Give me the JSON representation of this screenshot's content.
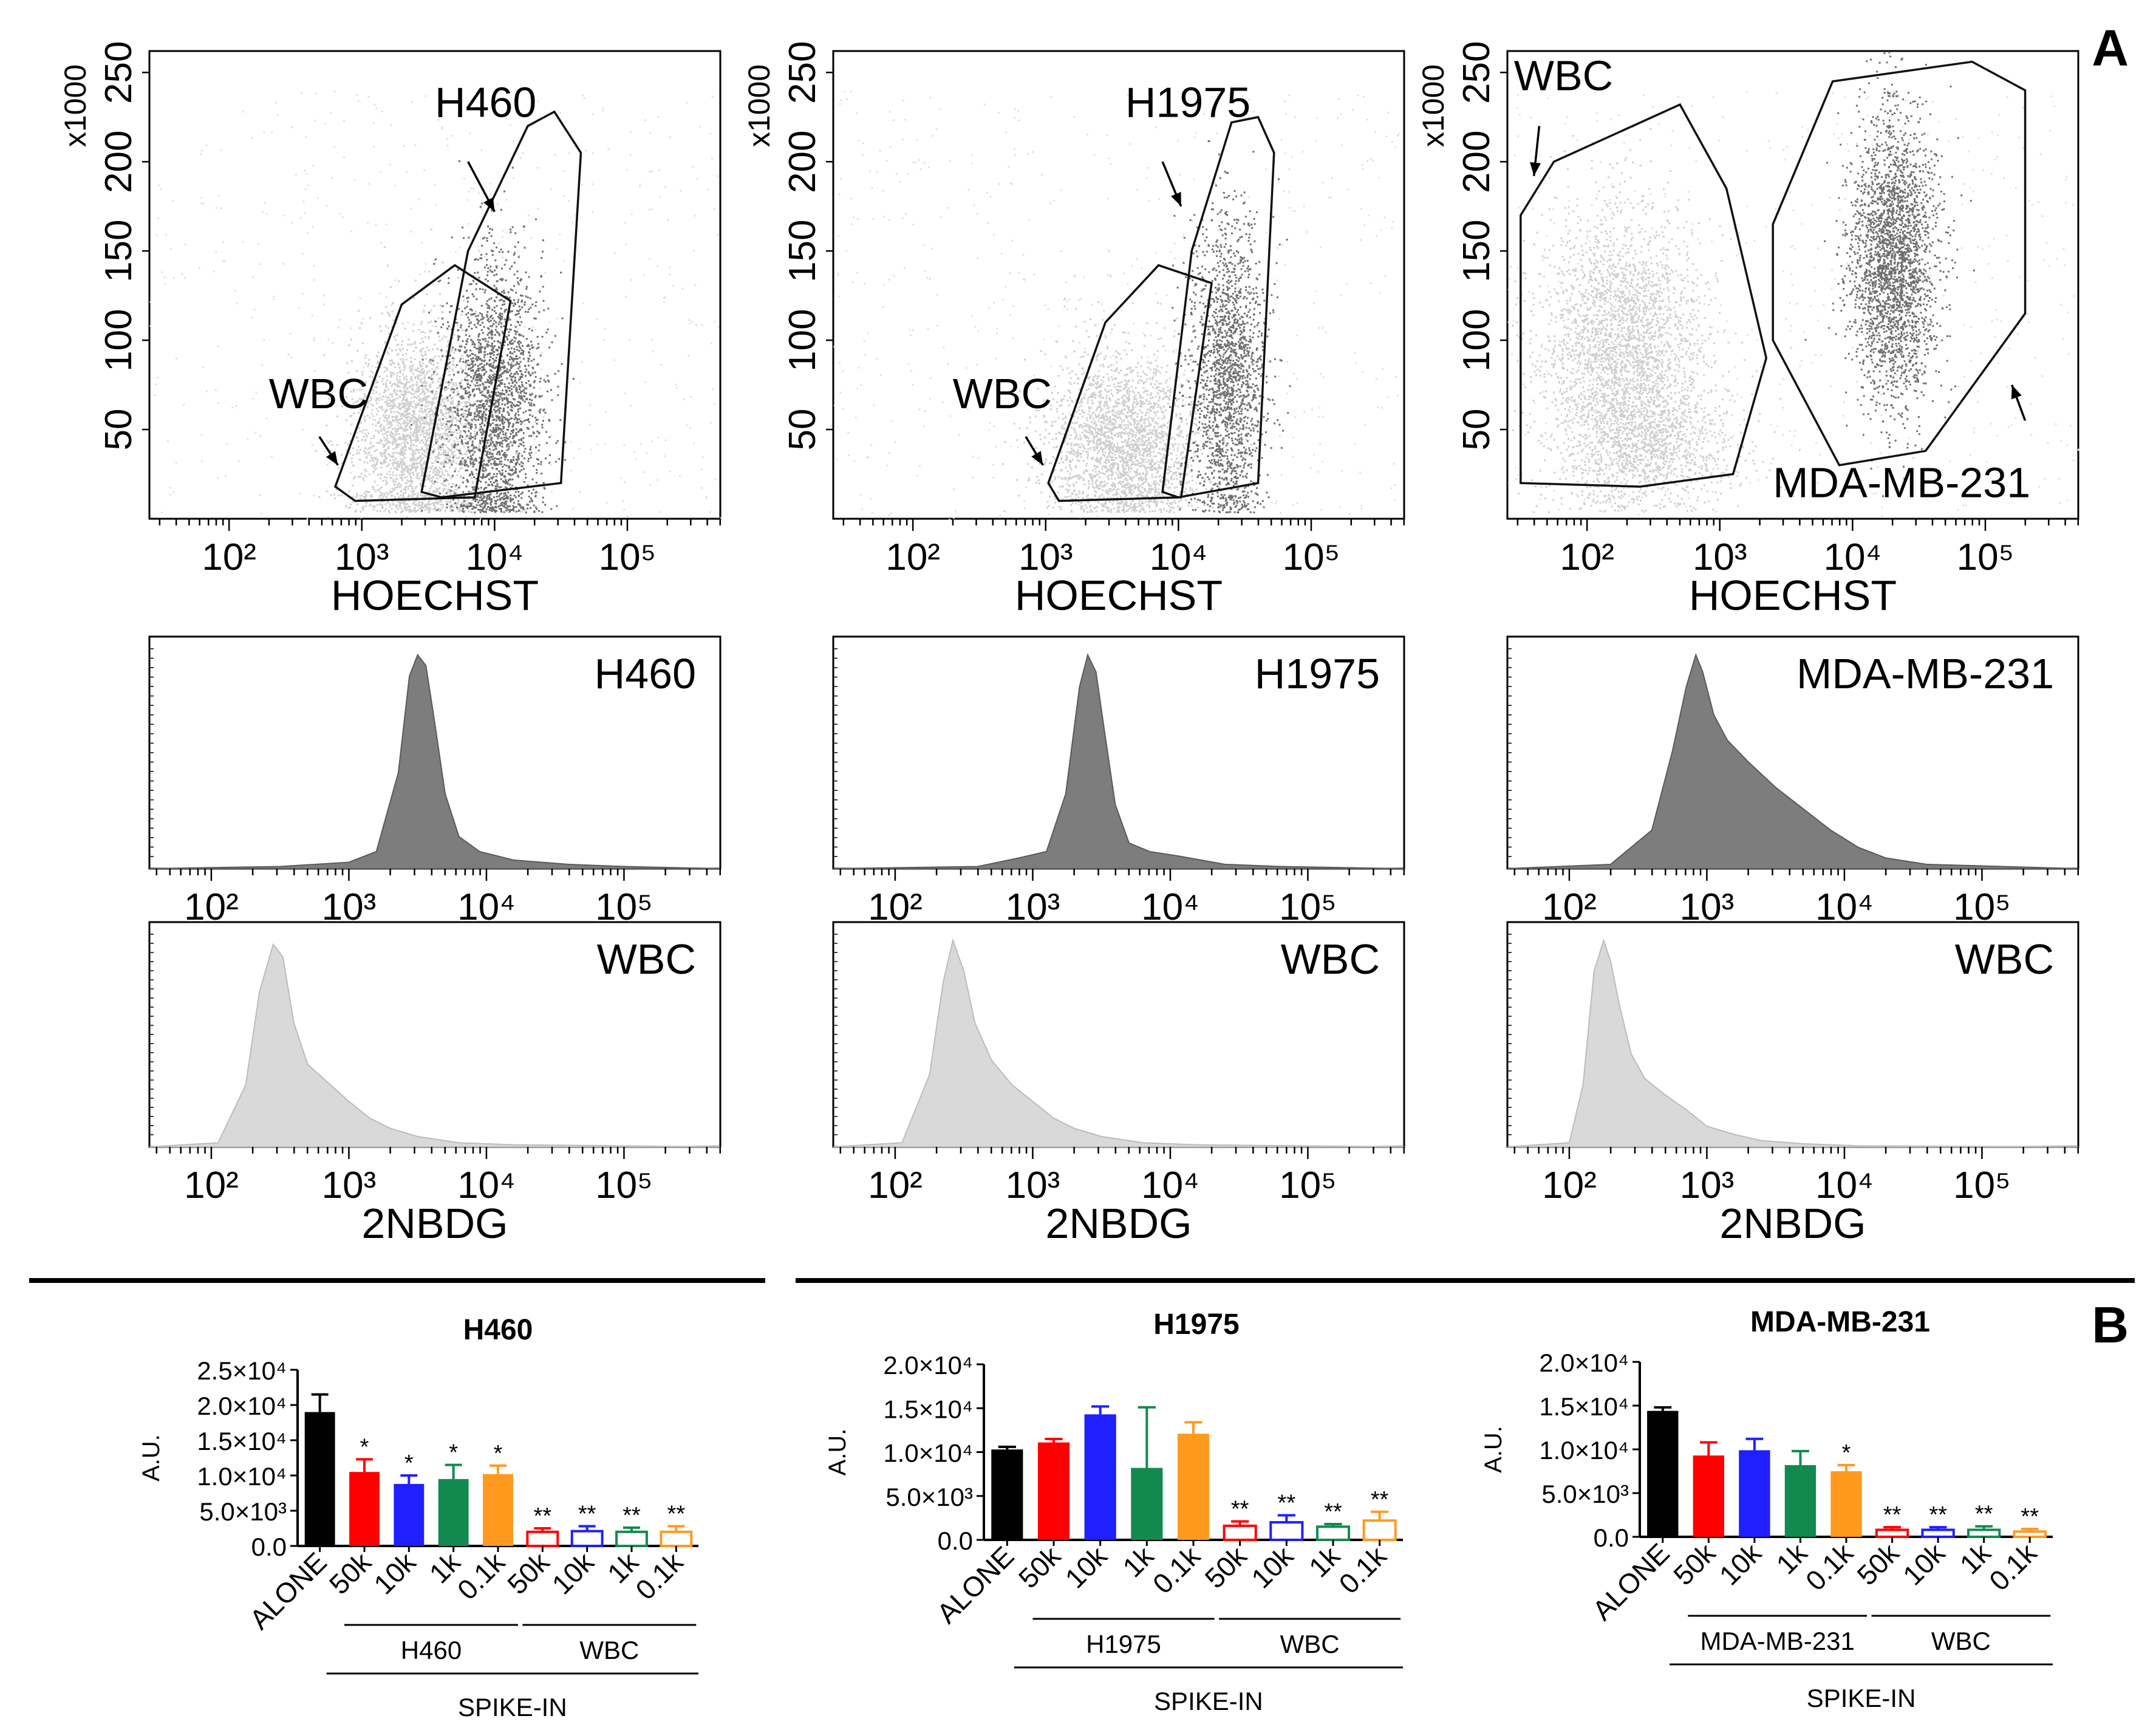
{
  "panel_labels": {
    "a": "A",
    "b": "B"
  },
  "colors": {
    "tumor": "#6f6f6f",
    "wbc": "#cfcfcf",
    "black": "#000000",
    "red": "#ff0000",
    "blue": "#1f1fff",
    "green": "#128a4f",
    "orange": "#ff9a1f"
  },
  "chart_data": [
    {
      "type": "scatter",
      "id": "dot-h460",
      "xlabel": "HOECHST",
      "y_multiplier": "x1000",
      "xticks": [
        "10²",
        "10³",
        "10⁴",
        "10⁵"
      ],
      "xtick_values": [
        2,
        3,
        4,
        5
      ],
      "yticks": [
        "50",
        "100",
        "150",
        "200",
        "250"
      ],
      "ytick_values": [
        50,
        100,
        150,
        200,
        250
      ],
      "xlim": [
        1.4,
        5.7
      ],
      "ylim": [
        0,
        262
      ],
      "annotations": [
        {
          "text": "H460",
          "x": 3.55,
          "y": 225
        },
        {
          "text": "WBC",
          "x": 2.3,
          "y": 62
        }
      ],
      "arrows": [
        {
          "from": [
            3.8,
            200
          ],
          "to": [
            4.0,
            172
          ]
        },
        {
          "from": [
            2.68,
            46
          ],
          "to": [
            2.82,
            30
          ]
        }
      ],
      "gates": [
        {
          "name": "wbc-gate",
          "points": [
            [
              2.8,
              18
            ],
            [
              3.3,
              120
            ],
            [
              3.7,
              142
            ],
            [
              4.12,
              122
            ],
            [
              3.85,
              12
            ],
            [
              2.95,
              10
            ]
          ]
        },
        {
          "name": "tumor-gate",
          "points": [
            [
              3.45,
              15
            ],
            [
              3.8,
              150
            ],
            [
              4.25,
              220
            ],
            [
              4.45,
              228
            ],
            [
              4.65,
              205
            ],
            [
              4.5,
              20
            ],
            [
              3.6,
              12
            ]
          ]
        }
      ],
      "clusters": [
        {
          "kind": "wbc",
          "cx": 3.4,
          "cy": 48,
          "sx": 0.24,
          "sy": 30,
          "n": 2600
        },
        {
          "kind": "tumor",
          "cx": 4.0,
          "cy": 65,
          "sx": 0.18,
          "sy": 40,
          "n": 2200
        }
      ]
    },
    {
      "type": "scatter",
      "id": "dot-h1975",
      "xlabel": "HOECHST",
      "y_multiplier": "x1000",
      "xticks": [
        "10²",
        "10³",
        "10⁴",
        "10⁵"
      ],
      "xtick_values": [
        2,
        3,
        4,
        5
      ],
      "yticks": [
        "50",
        "100",
        "150",
        "200",
        "250"
      ],
      "ytick_values": [
        50,
        100,
        150,
        200,
        250
      ],
      "xlim": [
        1.4,
        5.7
      ],
      "ylim": [
        0,
        262
      ],
      "annotations": [
        {
          "text": "H1975",
          "x": 3.6,
          "y": 225
        },
        {
          "text": "WBC",
          "x": 2.3,
          "y": 62
        }
      ],
      "arrows": [
        {
          "from": [
            3.88,
            200
          ],
          "to": [
            4.02,
            175
          ]
        },
        {
          "from": [
            2.85,
            46
          ],
          "to": [
            2.98,
            30
          ]
        }
      ],
      "gates": [
        {
          "name": "wbc-gate",
          "points": [
            [
              3.02,
              20
            ],
            [
              3.45,
              110
            ],
            [
              3.85,
              142
            ],
            [
              4.25,
              132
            ],
            [
              4.02,
              12
            ],
            [
              3.1,
              10
            ]
          ]
        },
        {
          "name": "tumor-gate",
          "points": [
            [
              3.88,
              15
            ],
            [
              4.1,
              150
            ],
            [
              4.4,
              222
            ],
            [
              4.6,
              225
            ],
            [
              4.72,
              205
            ],
            [
              4.6,
              20
            ],
            [
              4.0,
              12
            ]
          ]
        }
      ],
      "clusters": [
        {
          "kind": "wbc",
          "cx": 3.6,
          "cy": 42,
          "sx": 0.28,
          "sy": 25,
          "n": 2500
        },
        {
          "kind": "tumor",
          "cx": 4.36,
          "cy": 80,
          "sx": 0.14,
          "sy": 45,
          "n": 1800
        }
      ]
    },
    {
      "type": "scatter",
      "id": "dot-mda",
      "xlabel": "HOECHST",
      "y_multiplier": "x1000",
      "xticks": [
        "10²",
        "10³",
        "10⁴",
        "10⁵"
      ],
      "xtick_values": [
        2,
        3,
        4,
        5
      ],
      "yticks": [
        "50",
        "100",
        "150",
        "200",
        "250"
      ],
      "ytick_values": [
        50,
        100,
        150,
        200,
        250
      ],
      "xlim": [
        1.4,
        5.7
      ],
      "ylim": [
        0,
        262
      ],
      "annotations": [
        {
          "text": "WBC",
          "x": 1.45,
          "y": 240
        },
        {
          "text": "MDA-MB-231",
          "x": 3.4,
          "y": 12
        }
      ],
      "arrows": [
        {
          "from": [
            1.64,
            220
          ],
          "to": [
            1.6,
            192
          ]
        },
        {
          "from": [
            5.3,
            55
          ],
          "to": [
            5.2,
            75
          ]
        }
      ],
      "gates": [
        {
          "name": "wbc-gate",
          "points": [
            [
              1.5,
              20
            ],
            [
              1.5,
              170
            ],
            [
              1.75,
              200
            ],
            [
              2.7,
              232
            ],
            [
              3.05,
              185
            ],
            [
              3.35,
              90
            ],
            [
              3.1,
              25
            ],
            [
              2.4,
              18
            ]
          ]
        },
        {
          "name": "tumor-gate",
          "points": [
            [
              3.4,
              165
            ],
            [
              3.85,
              245
            ],
            [
              4.9,
              256
            ],
            [
              5.3,
              240
            ],
            [
              5.3,
              115
            ],
            [
              4.55,
              38
            ],
            [
              3.9,
              30
            ],
            [
              3.4,
              100
            ]
          ]
        }
      ],
      "clusters": [
        {
          "kind": "wbc",
          "cx": 2.25,
          "cy": 95,
          "sx": 0.32,
          "sy": 38,
          "n": 3000
        },
        {
          "kind": "wbc",
          "cx": 2.5,
          "cy": 40,
          "sx": 0.35,
          "sy": 15,
          "n": 900
        },
        {
          "kind": "tumor",
          "cx": 4.3,
          "cy": 145,
          "sx": 0.16,
          "sy": 40,
          "n": 2600
        }
      ]
    },
    {
      "type": "area",
      "id": "hist-h460-tumor",
      "label": "H460",
      "xticks": [
        "10²",
        "10³",
        "10⁴",
        "10⁵"
      ],
      "xtick_values": [
        2,
        3,
        4,
        5
      ],
      "xlim": [
        1.55,
        5.7
      ],
      "show_xlabel": false,
      "fill": "tumor",
      "x": [
        1.55,
        2.5,
        3.0,
        3.2,
        3.36,
        3.44,
        3.5,
        3.56,
        3.62,
        3.7,
        3.8,
        3.95,
        4.2,
        4.6,
        5.0,
        5.7
      ],
      "y": [
        0.0,
        0.01,
        0.03,
        0.08,
        0.45,
        0.9,
        1.0,
        0.95,
        0.7,
        0.35,
        0.15,
        0.08,
        0.04,
        0.02,
        0.01,
        0.0
      ]
    },
    {
      "type": "area",
      "id": "hist-h460-wbc",
      "label": "WBC",
      "xticks": [
        "10²",
        "10³",
        "10⁴",
        "10⁵"
      ],
      "xtick_values": [
        2,
        3,
        4,
        5
      ],
      "xlim": [
        1.55,
        5.7
      ],
      "xlabel": "2NBDG",
      "show_xlabel": true,
      "fill": "wbc",
      "x": [
        1.55,
        2.05,
        2.25,
        2.35,
        2.45,
        2.52,
        2.6,
        2.7,
        2.8,
        2.9,
        3.0,
        3.15,
        3.3,
        3.5,
        3.8,
        4.2,
        5.7
      ],
      "y": [
        0.0,
        0.02,
        0.3,
        0.75,
        0.98,
        0.92,
        0.6,
        0.4,
        0.34,
        0.28,
        0.22,
        0.14,
        0.09,
        0.05,
        0.02,
        0.01,
        0.0
      ]
    },
    {
      "type": "area",
      "id": "hist-h1975-tumor",
      "label": "H1975",
      "xticks": [
        "10²",
        "10³",
        "10⁴",
        "10⁵"
      ],
      "xtick_values": [
        2,
        3,
        4,
        5
      ],
      "xlim": [
        1.55,
        5.7
      ],
      "show_xlabel": false,
      "fill": "tumor",
      "x": [
        1.55,
        2.6,
        2.9,
        3.1,
        3.24,
        3.34,
        3.4,
        3.46,
        3.52,
        3.6,
        3.7,
        3.85,
        4.05,
        4.4,
        4.8,
        5.7
      ],
      "y": [
        0.0,
        0.01,
        0.05,
        0.08,
        0.35,
        0.85,
        1.0,
        0.92,
        0.65,
        0.3,
        0.12,
        0.08,
        0.06,
        0.02,
        0.01,
        0.0
      ]
    },
    {
      "type": "area",
      "id": "hist-h1975-wbc",
      "label": "WBC",
      "xticks": [
        "10²",
        "10³",
        "10⁴",
        "10⁵"
      ],
      "xtick_values": [
        2,
        3,
        4,
        5
      ],
      "xlim": [
        1.55,
        5.7
      ],
      "xlabel": "2NBDG",
      "show_xlabel": true,
      "fill": "wbc",
      "x": [
        1.55,
        2.05,
        2.25,
        2.35,
        2.42,
        2.5,
        2.58,
        2.7,
        2.85,
        3.0,
        3.15,
        3.3,
        3.5,
        3.8,
        4.2,
        5.7
      ],
      "y": [
        0.0,
        0.02,
        0.35,
        0.8,
        1.0,
        0.85,
        0.6,
        0.42,
        0.3,
        0.22,
        0.14,
        0.09,
        0.05,
        0.02,
        0.01,
        0.0
      ]
    },
    {
      "type": "area",
      "id": "hist-mda-tumor",
      "label": "MDA-MB-231",
      "xticks": [
        "10²",
        "10³",
        "10⁴",
        "10⁵"
      ],
      "xtick_values": [
        2,
        3,
        4,
        5
      ],
      "xlim": [
        1.55,
        5.7
      ],
      "show_xlabel": false,
      "fill": "tumor",
      "x": [
        1.55,
        2.3,
        2.6,
        2.75,
        2.85,
        2.92,
        2.97,
        3.05,
        3.15,
        3.3,
        3.5,
        3.7,
        3.9,
        4.1,
        4.3,
        4.6,
        5.7
      ],
      "y": [
        0.0,
        0.02,
        0.18,
        0.55,
        0.85,
        1.0,
        0.92,
        0.72,
        0.6,
        0.5,
        0.38,
        0.28,
        0.18,
        0.1,
        0.05,
        0.02,
        0.0
      ]
    },
    {
      "type": "area",
      "id": "hist-mda-wbc",
      "label": "WBC",
      "xticks": [
        "10²",
        "10³",
        "10⁴",
        "10⁵"
      ],
      "xtick_values": [
        2,
        3,
        4,
        5
      ],
      "xlim": [
        1.55,
        5.7
      ],
      "xlabel": "2NBDG",
      "show_xlabel": true,
      "fill": "wbc",
      "x": [
        1.55,
        2.0,
        2.1,
        2.18,
        2.25,
        2.3,
        2.36,
        2.45,
        2.55,
        2.7,
        2.85,
        3.0,
        3.2,
        3.4,
        3.7,
        4.1,
        5.7
      ],
      "y": [
        0.0,
        0.02,
        0.3,
        0.85,
        1.0,
        0.9,
        0.7,
        0.45,
        0.33,
        0.25,
        0.18,
        0.1,
        0.06,
        0.03,
        0.015,
        0.005,
        0.0
      ]
    },
    {
      "type": "bar",
      "id": "bar-h460",
      "title": "H460",
      "ylabel": "A.U.",
      "ylim": [
        0,
        25000
      ],
      "yticks": [
        0,
        5000,
        10000,
        15000,
        20000,
        25000
      ],
      "ytick_labels": [
        "0.0",
        "5.0×10³",
        "1.0×10⁴",
        "1.5×10⁴",
        "2.0×10⁴",
        "2.5×10⁴"
      ],
      "categories": [
        "ALONE",
        "50k",
        "10k",
        "1k",
        "0.1k",
        "50k",
        "10k",
        "1k",
        "0.1k"
      ],
      "values": [
        19000,
        10500,
        8800,
        9500,
        10200,
        2000,
        2100,
        2000,
        2000
      ],
      "errors": [
        2500,
        1800,
        1200,
        2000,
        1200,
        500,
        700,
        600,
        800
      ],
      "colors": [
        "black",
        "red",
        "blue",
        "green",
        "orange",
        "red",
        "blue",
        "green",
        "orange"
      ],
      "filled": [
        true,
        true,
        true,
        true,
        true,
        false,
        false,
        false,
        false
      ],
      "significance": [
        "",
        "*",
        "*",
        "*",
        "*",
        "**",
        "**",
        "**",
        "**"
      ],
      "groups": [
        {
          "label": "H460",
          "from": 1,
          "to": 4
        },
        {
          "label": "WBC",
          "from": 5,
          "to": 8
        }
      ],
      "spike_label": "SPIKE-IN"
    },
    {
      "type": "bar",
      "id": "bar-h1975",
      "title": "H1975",
      "ylabel": "A.U.",
      "ylim": [
        0,
        20000
      ],
      "yticks": [
        0,
        5000,
        10000,
        15000,
        20000
      ],
      "ytick_labels": [
        "0.0",
        "5.0×10³",
        "1.0×10⁴",
        "1.5×10⁴",
        "2.0×10⁴"
      ],
      "categories": [
        "ALONE",
        "50k",
        "10k",
        "1k",
        "0.1k",
        "50k",
        "10k",
        "1k",
        "0.1k"
      ],
      "values": [
        10300,
        11100,
        14300,
        8200,
        12100,
        1600,
        2000,
        1500,
        2200
      ],
      "errors": [
        300,
        400,
        900,
        6900,
        1300,
        500,
        800,
        300,
        1000
      ],
      "colors": [
        "black",
        "red",
        "blue",
        "green",
        "orange",
        "red",
        "blue",
        "green",
        "orange"
      ],
      "filled": [
        true,
        true,
        true,
        true,
        true,
        false,
        false,
        false,
        false
      ],
      "significance": [
        "",
        "",
        "",
        "",
        "",
        "**",
        "**",
        "**",
        "**"
      ],
      "groups": [
        {
          "label": "H1975",
          "from": 1,
          "to": 4
        },
        {
          "label": "WBC",
          "from": 5,
          "to": 8
        }
      ],
      "spike_label": "SPIKE-IN"
    },
    {
      "type": "bar",
      "id": "bar-mda",
      "title": "MDA-MB-231",
      "ylabel": "A.U.",
      "ylim": [
        0,
        20000
      ],
      "yticks": [
        0,
        5000,
        10000,
        15000,
        20000
      ],
      "ytick_labels": [
        "0.0",
        "5.0×10³",
        "1.0×10⁴",
        "1.5×10⁴",
        "2.0×10⁴"
      ],
      "categories": [
        "ALONE",
        "50k",
        "10k",
        "1k",
        "0.1k",
        "50k",
        "10k",
        "1k",
        "0.1k"
      ],
      "values": [
        14400,
        9300,
        9900,
        8200,
        7500,
        800,
        800,
        800,
        600
      ],
      "errors": [
        400,
        1500,
        1300,
        1600,
        700,
        300,
        300,
        400,
        300
      ],
      "colors": [
        "black",
        "red",
        "blue",
        "green",
        "orange",
        "red",
        "blue",
        "green",
        "orange"
      ],
      "filled": [
        true,
        true,
        true,
        true,
        true,
        false,
        false,
        false,
        false
      ],
      "significance": [
        "",
        "",
        "",
        "",
        "*",
        "**",
        "**",
        "**",
        "**"
      ],
      "groups": [
        {
          "label": "MDA-MB-231",
          "from": 1,
          "to": 4
        },
        {
          "label": "WBC",
          "from": 5,
          "to": 8
        }
      ],
      "spike_label": "SPIKE-IN"
    }
  ]
}
